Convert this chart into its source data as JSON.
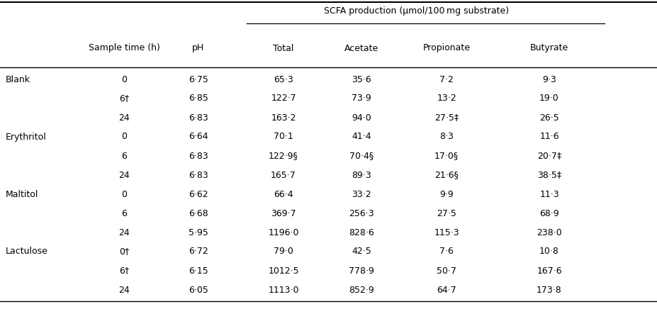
{
  "header_top": "SCFA production (μmol/100 mg substrate)",
  "col_headers": [
    "Sample time (h)",
    "pH",
    "Total",
    "Acetate",
    "Propionate",
    "Butyrate"
  ],
  "groups": [
    {
      "name": "Blank",
      "rows": [
        [
          "0",
          "6·75",
          "65·3",
          "35·6",
          "7·2",
          "9·3"
        ],
        [
          "6†",
          "6·85",
          "122·7",
          "73·9",
          "13·2",
          "19·0"
        ],
        [
          "24",
          "6·83",
          "163·2",
          "94·0",
          "27·5‡",
          "26·5"
        ]
      ]
    },
    {
      "name": "Erythritol",
      "rows": [
        [
          "0",
          "6·64",
          "70·1",
          "41·4",
          "8·3",
          "11·6"
        ],
        [
          "6",
          "6·83",
          "122·9§",
          "70·4§",
          "17·0§",
          "20·7‡"
        ],
        [
          "24",
          "6·83",
          "165·7",
          "89·3",
          "21·6§",
          "38·5‡"
        ]
      ]
    },
    {
      "name": "Maltitol",
      "rows": [
        [
          "0",
          "6·62",
          "66·4",
          "33·2",
          "9·9",
          "11·3"
        ],
        [
          "6",
          "6·68",
          "369·7",
          "256·3",
          "27·5",
          "68·9"
        ],
        [
          "24",
          "5·95",
          "1196·0",
          "828·6",
          "115·3",
          "238·0"
        ]
      ]
    },
    {
      "name": "Lactulose",
      "rows": [
        [
          "0†",
          "6·72",
          "79·0",
          "42·5",
          "7·6",
          "10·8"
        ],
        [
          "6†",
          "6·15",
          "1012·5",
          "778·9",
          "50·7",
          "167·6"
        ],
        [
          "24",
          "6·05",
          "1113·0",
          "852·9",
          "64·7",
          "173·8"
        ]
      ]
    }
  ],
  "background_color": "#ffffff",
  "font_size": 9.0,
  "font_family": "DejaVu Sans"
}
